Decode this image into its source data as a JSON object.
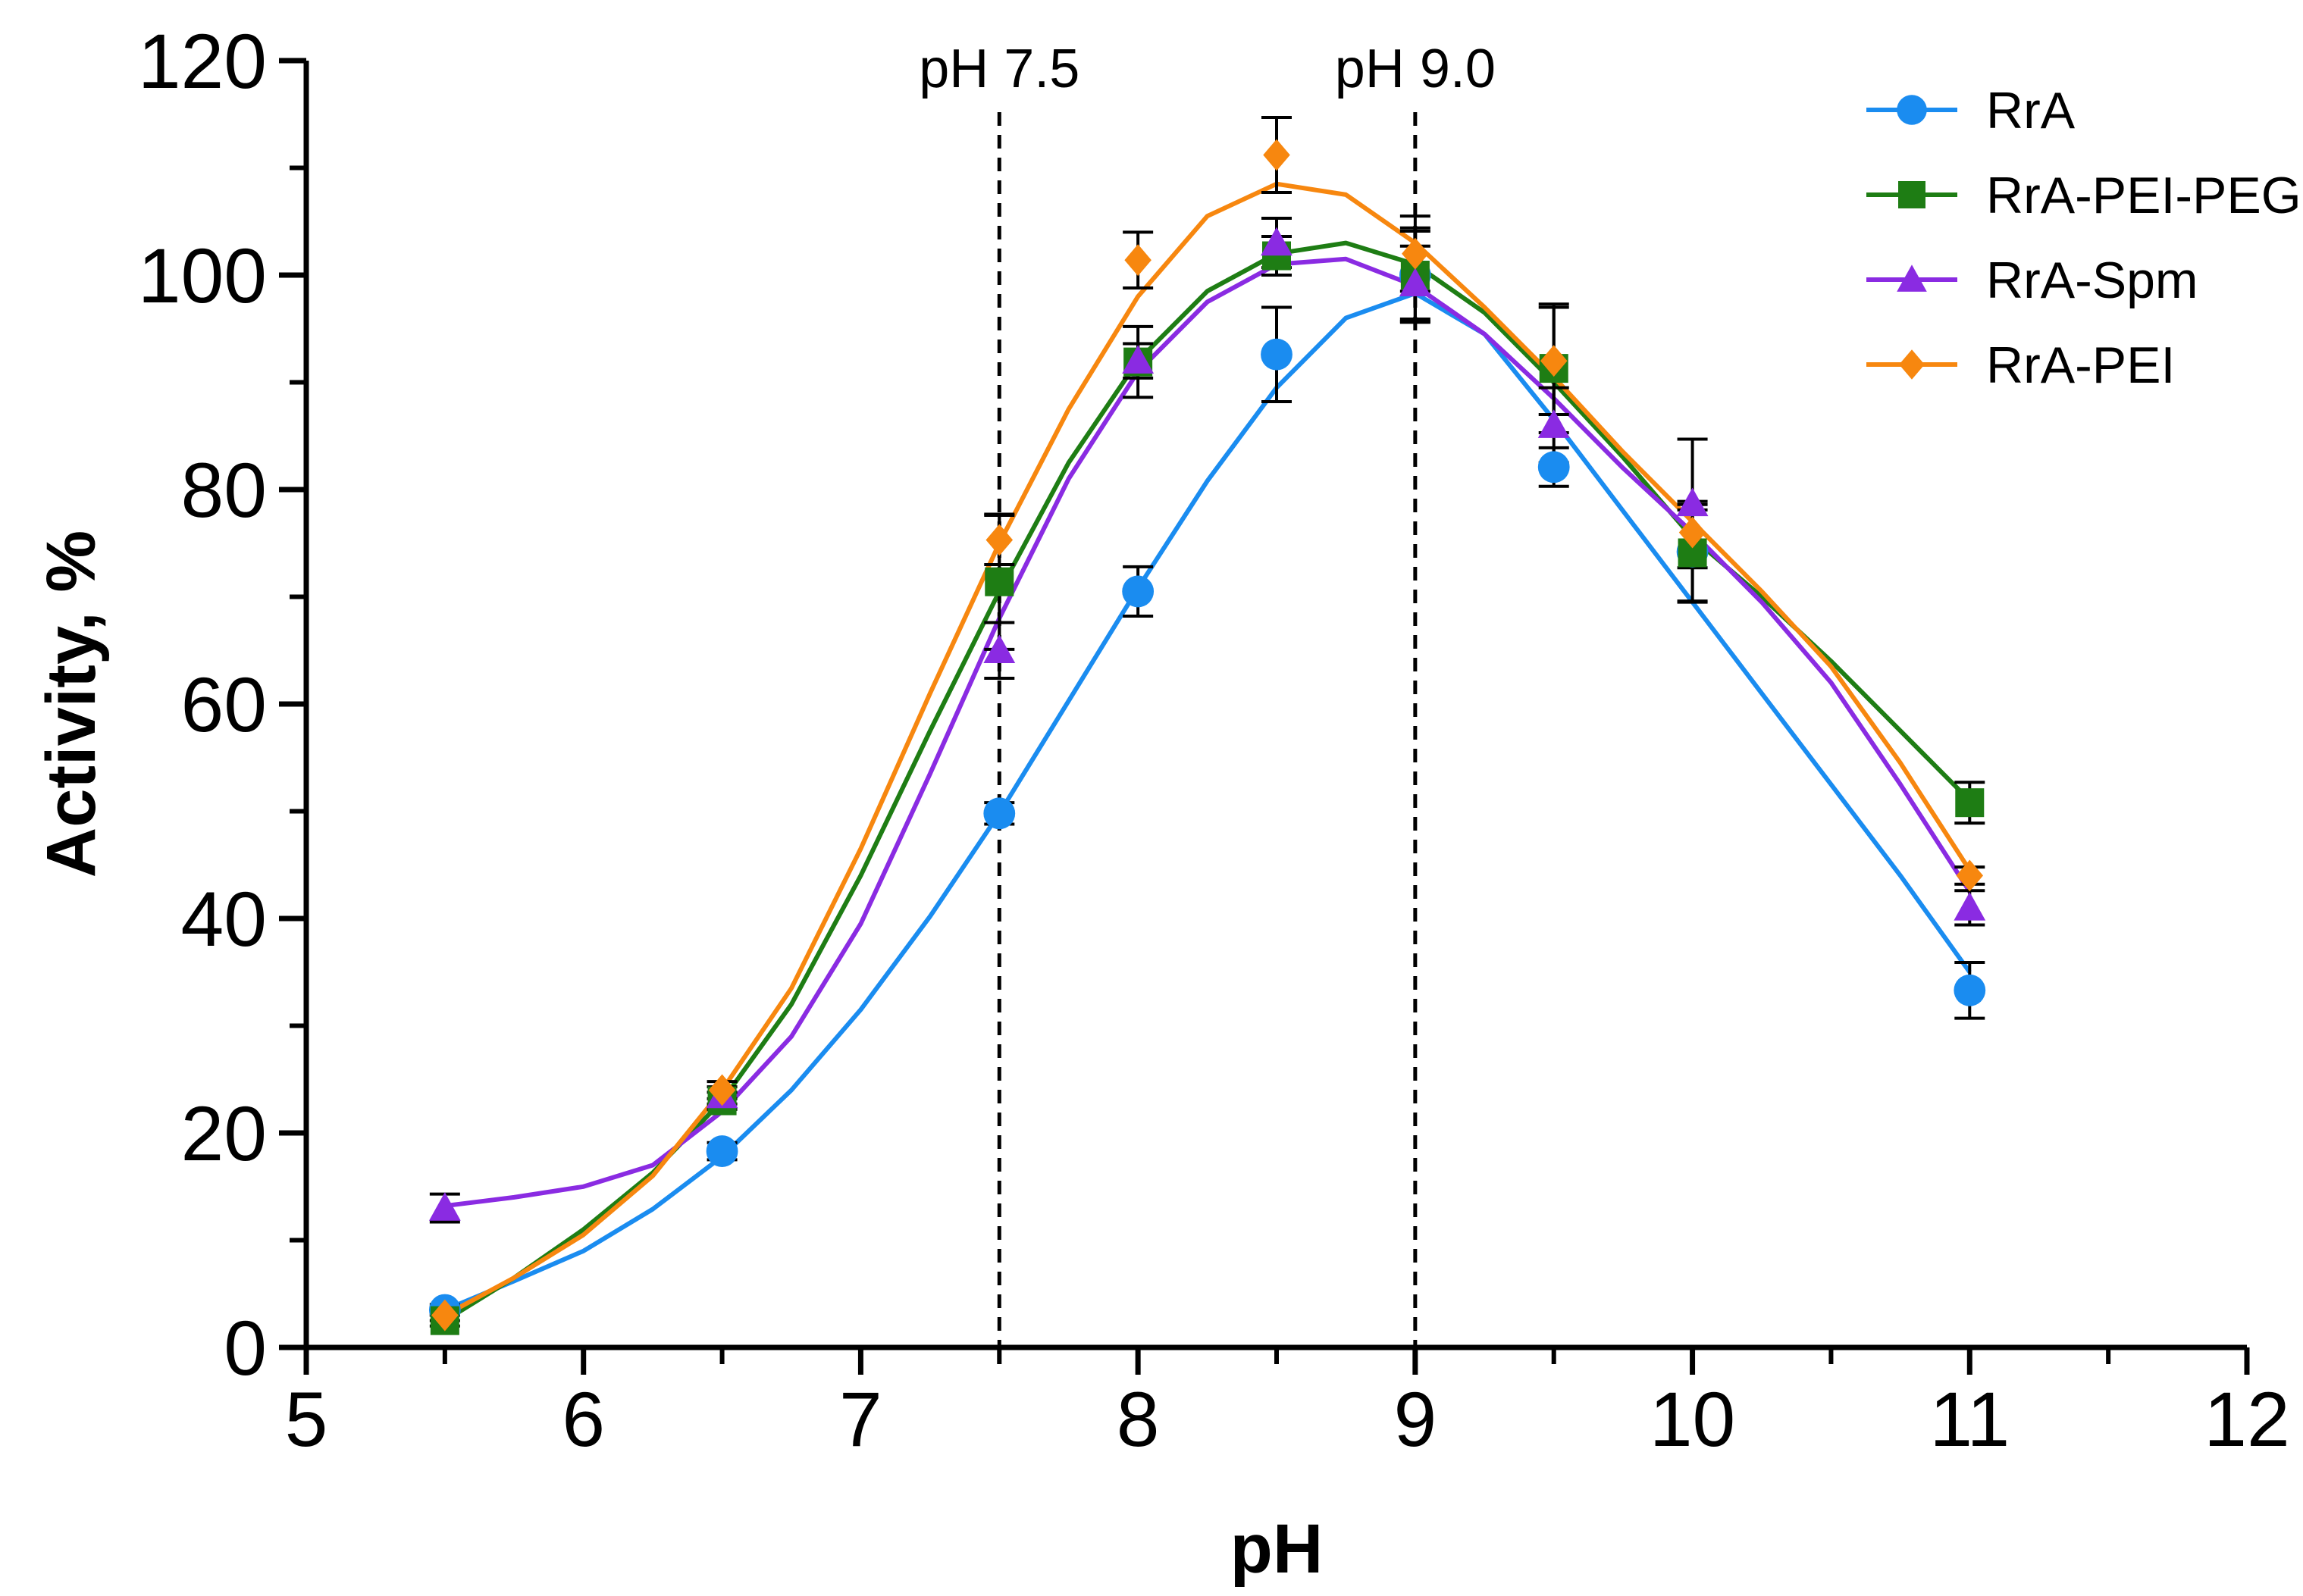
{
  "chart_data": {
    "type": "line",
    "title": "",
    "xlabel": "pH",
    "ylabel": "Activity, %",
    "xlim": [
      5,
      12
    ],
    "ylim": [
      0,
      120
    ],
    "x_ticks": [
      "5",
      "6",
      "7",
      "8",
      "9",
      "10",
      "11",
      "12"
    ],
    "y_ticks": [
      "0",
      "20",
      "40",
      "60",
      "80",
      "100",
      "120"
    ],
    "grid": false,
    "legend_position": "top-right",
    "reference_lines": [
      {
        "x": 7.5,
        "label": "pH 7.5"
      },
      {
        "x": 9.0,
        "label": "pH 9.0"
      }
    ],
    "x": [
      5.5,
      6.5,
      7.5,
      8.0,
      8.5,
      9.0,
      9.5,
      10.0,
      11.0
    ],
    "series": [
      {
        "name": "RrA",
        "color": "#1a8cf0",
        "marker": "circle",
        "values": [
          3.5,
          18.3,
          49.8,
          70.5,
          92.6,
          100.0,
          82.1,
          74.2,
          33.3
        ],
        "errors": [
          0.5,
          0.8,
          1.0,
          2.3,
          4.4,
          4.4,
          1.8,
          4.7,
          2.6
        ],
        "fit": [
          [
            5.5,
            3.5
          ],
          [
            5.75,
            6.2
          ],
          [
            6.0,
            9.0
          ],
          [
            6.25,
            12.9
          ],
          [
            6.5,
            17.8
          ],
          [
            6.75,
            24.0
          ],
          [
            7.0,
            31.5
          ],
          [
            7.25,
            40.2
          ],
          [
            7.5,
            49.8
          ],
          [
            7.75,
            60.3
          ],
          [
            8.0,
            70.8
          ],
          [
            8.25,
            80.8
          ],
          [
            8.5,
            89.5
          ],
          [
            8.75,
            96.0
          ],
          [
            9.0,
            98.3
          ],
          [
            9.25,
            94.5
          ],
          [
            9.5,
            86.5
          ],
          [
            9.75,
            78.0
          ],
          [
            10.0,
            69.5
          ],
          [
            10.25,
            61.0
          ],
          [
            10.5,
            52.5
          ],
          [
            10.75,
            44.0
          ],
          [
            11.0,
            35.0
          ]
        ]
      },
      {
        "name": "RrA-PEI-PEG",
        "color": "#1e7d14",
        "marker": "square",
        "values": [
          2.5,
          23.0,
          71.4,
          91.9,
          101.8,
          100.0,
          91.3,
          74.1,
          50.8
        ],
        "errors": [
          0.5,
          0.8,
          6.3,
          3.3,
          1.8,
          4.1,
          6.0,
          4.5,
          1.9
        ],
        "fit": [
          [
            5.5,
            2.5
          ],
          [
            5.75,
            6.5
          ],
          [
            6.0,
            11.0
          ],
          [
            6.25,
            16.3
          ],
          [
            6.5,
            23.0
          ],
          [
            6.75,
            32.0
          ],
          [
            7.0,
            44.0
          ],
          [
            7.25,
            57.5
          ],
          [
            7.5,
            70.5
          ],
          [
            7.75,
            82.5
          ],
          [
            8.0,
            92.0
          ],
          [
            8.25,
            98.5
          ],
          [
            8.5,
            102.0
          ],
          [
            8.75,
            103.0
          ],
          [
            9.0,
            101.0
          ],
          [
            9.25,
            96.5
          ],
          [
            9.5,
            90.0
          ],
          [
            9.75,
            83.0
          ],
          [
            10.0,
            75.5
          ],
          [
            10.25,
            70.0
          ],
          [
            10.5,
            64.0
          ],
          [
            10.75,
            57.5
          ],
          [
            11.0,
            51.0
          ]
        ]
      },
      {
        "name": "RrA-Spm",
        "color": "#8a2be2",
        "marker": "triangle",
        "values": [
          13.0,
          23.5,
          65.0,
          92.0,
          103.0,
          99.2,
          86.0,
          78.7,
          41.0
        ],
        "errors": [
          1.3,
          0.8,
          2.6,
          1.6,
          2.3,
          3.5,
          3.5,
          6.0,
          1.6
        ],
        "fit": [
          [
            5.5,
            13.2
          ],
          [
            5.75,
            14.0
          ],
          [
            6.0,
            15.0
          ],
          [
            6.25,
            17.0
          ],
          [
            6.5,
            22.0
          ],
          [
            6.75,
            29.0
          ],
          [
            7.0,
            39.5
          ],
          [
            7.25,
            53.5
          ],
          [
            7.5,
            68.0
          ],
          [
            7.75,
            81.0
          ],
          [
            8.0,
            91.0
          ],
          [
            8.25,
            97.5
          ],
          [
            8.5,
            101.0
          ],
          [
            8.75,
            101.5
          ],
          [
            9.0,
            99.0
          ],
          [
            9.25,
            94.5
          ],
          [
            9.5,
            88.5
          ],
          [
            9.75,
            82.0
          ],
          [
            10.0,
            76.0
          ],
          [
            10.25,
            69.5
          ],
          [
            10.5,
            62.0
          ],
          [
            10.75,
            52.5
          ],
          [
            11.0,
            42.5
          ]
        ]
      },
      {
        "name": "RrA-PEI",
        "color": "#f7870f",
        "marker": "diamond",
        "values": [
          3.0,
          24.0,
          75.3,
          101.4,
          111.2,
          102.0,
          92.0,
          76.0,
          44.0
        ],
        "errors": [
          0.5,
          0.8,
          2.3,
          2.6,
          3.5,
          3.5,
          5.0,
          2.1,
          0.8
        ],
        "fit": [
          [
            5.5,
            3.0
          ],
          [
            5.75,
            6.5
          ],
          [
            6.0,
            10.5
          ],
          [
            6.25,
            16.0
          ],
          [
            6.5,
            24.0
          ],
          [
            6.75,
            33.5
          ],
          [
            7.0,
            46.5
          ],
          [
            7.25,
            61.0
          ],
          [
            7.5,
            75.0
          ],
          [
            7.75,
            87.5
          ],
          [
            8.0,
            98.0
          ],
          [
            8.25,
            105.5
          ],
          [
            8.5,
            108.5
          ],
          [
            8.75,
            107.5
          ],
          [
            9.0,
            103.0
          ],
          [
            9.25,
            97.0
          ],
          [
            9.5,
            90.5
          ],
          [
            9.75,
            83.5
          ],
          [
            10.0,
            77.0
          ],
          [
            10.25,
            70.5
          ],
          [
            10.5,
            63.5
          ],
          [
            10.75,
            54.5
          ],
          [
            11.0,
            44.5
          ]
        ]
      }
    ]
  }
}
